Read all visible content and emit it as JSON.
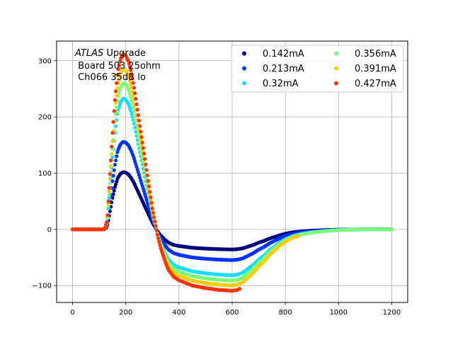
{
  "chart_data": {
    "type": "scatter",
    "annotation": {
      "italic_part": "ATLAS",
      "line1_rest": " Upgrade",
      "line2": " Board 503 25ohm",
      "line3": " Ch066 35dB lo"
    },
    "xlim": [
      -60,
      1260
    ],
    "ylim": [
      -130,
      335
    ],
    "xticks": [
      0,
      200,
      400,
      600,
      800,
      1000,
      1200
    ],
    "yticks": [
      -100,
      0,
      100,
      200,
      300
    ],
    "xtick_labels": [
      "0",
      "200",
      "400",
      "600",
      "800",
      "1000",
      "1200"
    ],
    "ytick_labels": [
      "−100",
      "0",
      "100",
      "200",
      "300"
    ],
    "grid": true,
    "legend": {
      "placement": "top-right",
      "columns": 2
    },
    "pulse_shape": [
      [
        0,
        0
      ],
      [
        120,
        0
      ],
      [
        130,
        0.05
      ],
      [
        140,
        0.3
      ],
      [
        150,
        0.55
      ],
      [
        160,
        0.75
      ],
      [
        170,
        0.9
      ],
      [
        180,
        0.97
      ],
      [
        190,
        1.0
      ],
      [
        200,
        0.99
      ],
      [
        210,
        0.96
      ],
      [
        220,
        0.9
      ],
      [
        230,
        0.82
      ],
      [
        240,
        0.72
      ],
      [
        250,
        0.62
      ],
      [
        260,
        0.52
      ],
      [
        270,
        0.42
      ],
      [
        280,
        0.32
      ],
      [
        290,
        0.22
      ],
      [
        300,
        0.12
      ],
      [
        310,
        0.04
      ],
      [
        320,
        -0.04
      ],
      [
        330,
        -0.1
      ],
      [
        345,
        -0.17
      ],
      [
        360,
        -0.23
      ],
      [
        380,
        -0.27
      ],
      [
        400,
        -0.29
      ],
      [
        450,
        -0.32
      ],
      [
        500,
        -0.335
      ],
      [
        550,
        -0.345
      ],
      [
        600,
        -0.35
      ],
      [
        620,
        -0.345
      ],
      [
        640,
        -0.33
      ],
      [
        660,
        -0.3
      ],
      [
        680,
        -0.27
      ],
      [
        700,
        -0.23
      ],
      [
        720,
        -0.2
      ],
      [
        740,
        -0.16
      ],
      [
        760,
        -0.13
      ],
      [
        780,
        -0.1
      ],
      [
        800,
        -0.075
      ],
      [
        830,
        -0.05
      ],
      [
        860,
        -0.035
      ],
      [
        900,
        -0.022
      ],
      [
        950,
        -0.012
      ],
      [
        1000,
        -0.005
      ],
      [
        1050,
        -0.002
      ],
      [
        1100,
        0
      ],
      [
        1200,
        0
      ]
    ],
    "sample_spacing": 3.125,
    "series": [
      {
        "name": "0.142mA",
        "peak": 102,
        "color": "#00007f",
        "x_end": 1200
      },
      {
        "name": "0.213mA",
        "peak": 156,
        "color": "#0033ff",
        "x_end": 1200
      },
      {
        "name": "0.32mA",
        "peak": 233,
        "color": "#18ddff",
        "x_end": 1200
      },
      {
        "name": "0.356mA",
        "peak": 260,
        "color": "#7bff7b",
        "x_end": 1200
      },
      {
        "name": "0.391mA",
        "peak": 285,
        "color": "#ffcc00",
        "x_end": 850
      },
      {
        "name": "0.427mA",
        "peak": 312,
        "color": "#ff3300",
        "x_end": 630
      }
    ]
  }
}
